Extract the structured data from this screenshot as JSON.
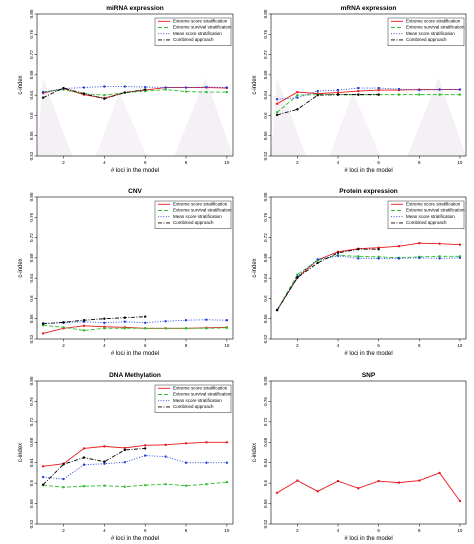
{
  "chart_data": [
    {
      "type": "line",
      "title": "miRNA expression",
      "xlabel": "# loci in the model",
      "ylabel": "c-index",
      "x": [
        1,
        2,
        3,
        4,
        5,
        6,
        7,
        8,
        9,
        10
      ],
      "xticks": [
        2,
        4,
        6,
        8,
        10
      ],
      "ylim": [
        0.52,
        0.8
      ],
      "yticks": [
        0.52,
        0.56,
        0.6,
        0.64,
        0.68,
        0.72,
        0.76,
        0.8
      ],
      "ytick_labels": [
        "0.52",
        "0.56",
        "0.6",
        "0.64",
        "0.68",
        "0.72",
        "0.76",
        "0.80"
      ],
      "legend": "top-right",
      "shaded": true,
      "series": [
        {
          "name": "Extreme score stratification",
          "color": "#e8191c",
          "style": "solid",
          "values": [
            0.644,
            0.653,
            0.641,
            0.634,
            0.645,
            0.65,
            0.655,
            0.655,
            0.655,
            0.654
          ]
        },
        {
          "name": "Extreme survival stratification",
          "color": "#2ebd2e",
          "style": "dashed",
          "values": [
            0.646,
            0.651,
            0.643,
            0.64,
            0.645,
            0.648,
            0.651,
            0.647,
            0.646,
            0.646
          ]
        },
        {
          "name": "Mean score stratification",
          "color": "#1f3fe0",
          "style": "dotted",
          "values": [
            0.646,
            0.653,
            0.655,
            0.657,
            0.657,
            0.656,
            0.655,
            0.655,
            0.656,
            0.655
          ]
        },
        {
          "name": "Combined approach",
          "color": "#000000",
          "style": "dashdot",
          "values": [
            0.635,
            0.654,
            0.643,
            0.633,
            0.645,
            0.651,
            null,
            null,
            null,
            null
          ]
        }
      ]
    },
    {
      "type": "line",
      "title": "mRNA expression",
      "xlabel": "# loci in the model",
      "ylabel": "c-index",
      "x": [
        1,
        2,
        3,
        4,
        5,
        6,
        7,
        8,
        9,
        10
      ],
      "xticks": [
        2,
        4,
        6,
        8,
        10
      ],
      "ylim": [
        0.52,
        0.8
      ],
      "yticks": [
        0.52,
        0.56,
        0.6,
        0.64,
        0.68,
        0.72,
        0.76,
        0.8
      ],
      "ytick_labels": [
        "0.52",
        "0.56",
        "0.6",
        "0.64",
        "0.68",
        "0.72",
        "0.76",
        "0.80"
      ],
      "legend": "top-right",
      "shaded": true,
      "series": [
        {
          "name": "Extreme score stratification",
          "color": "#e8191c",
          "style": "solid",
          "values": [
            0.623,
            0.646,
            0.643,
            0.645,
            0.648,
            0.65,
            0.65,
            0.651,
            0.651,
            0.651
          ]
        },
        {
          "name": "Extreme survival stratification",
          "color": "#2ebd2e",
          "style": "dashed",
          "values": [
            0.606,
            0.64,
            0.641,
            0.641,
            0.641,
            0.641,
            0.641,
            0.641,
            0.641,
            0.641
          ]
        },
        {
          "name": "Mean score stratification",
          "color": "#1f3fe0",
          "style": "dotted",
          "values": [
            0.632,
            0.635,
            0.648,
            0.65,
            0.654,
            0.654,
            0.652,
            0.65,
            0.651,
            0.651
          ]
        },
        {
          "name": "Combined approach",
          "color": "#000000",
          "style": "dashdot",
          "values": [
            0.601,
            0.612,
            0.64,
            0.641,
            0.641,
            0.641,
            null,
            null,
            null,
            null
          ]
        }
      ]
    },
    {
      "type": "line",
      "title": "CNV",
      "xlabel": "# loci in the model",
      "ylabel": "c-index",
      "x": [
        1,
        2,
        3,
        4,
        5,
        6,
        7,
        8,
        9,
        10
      ],
      "xticks": [
        2,
        4,
        6,
        8,
        10
      ],
      "ylim": [
        0.52,
        0.8
      ],
      "yticks": [
        0.52,
        0.56,
        0.6,
        0.64,
        0.68,
        0.72,
        0.76,
        0.8
      ],
      "ytick_labels": [
        "0.52",
        "0.56",
        "0.6",
        "0.64",
        "0.68",
        "0.72",
        "0.76",
        "0.80"
      ],
      "legend": "top-right",
      "shaded": false,
      "series": [
        {
          "name": "Extreme score stratification",
          "color": "#e8191c",
          "style": "solid",
          "values": [
            0.531,
            0.541,
            0.546,
            0.544,
            0.543,
            0.541,
            0.541,
            0.541,
            0.542,
            0.543
          ]
        },
        {
          "name": "Extreme survival stratification",
          "color": "#2ebd2e",
          "style": "dashed",
          "values": [
            0.547,
            0.543,
            0.537,
            0.541,
            0.541,
            0.541,
            0.541,
            0.541,
            0.541,
            0.542
          ]
        },
        {
          "name": "Mean score stratification",
          "color": "#1f3fe0",
          "style": "dotted",
          "values": [
            0.551,
            0.552,
            0.554,
            0.552,
            0.554,
            0.552,
            0.555,
            0.557,
            0.558,
            0.557
          ]
        },
        {
          "name": "Combined approach",
          "color": "#000000",
          "style": "dashdot",
          "values": [
            0.55,
            0.553,
            0.557,
            0.56,
            0.562,
            0.564,
            null,
            null,
            null,
            null
          ]
        }
      ]
    },
    {
      "type": "line",
      "title": "Protein expression",
      "xlabel": "# loci in the model",
      "ylabel": "c-index",
      "x": [
        1,
        2,
        3,
        4,
        5,
        6,
        7,
        8,
        9,
        10
      ],
      "xticks": [
        2,
        4,
        6,
        8,
        10
      ],
      "ylim": [
        0.52,
        0.8
      ],
      "yticks": [
        0.52,
        0.56,
        0.6,
        0.64,
        0.68,
        0.72,
        0.76,
        0.8
      ],
      "ytick_labels": [
        "0.52",
        "0.56",
        "0.6",
        "0.64",
        "0.68",
        "0.72",
        "0.76",
        "0.80"
      ],
      "legend": "top-right",
      "shaded": false,
      "series": [
        {
          "name": "Extreme score stratification",
          "color": "#e8191c",
          "style": "solid",
          "values": [
            0.577,
            0.641,
            0.676,
            0.692,
            0.698,
            0.7,
            0.703,
            0.709,
            0.708,
            0.706
          ]
        },
        {
          "name": "Extreme survival stratification",
          "color": "#2ebd2e",
          "style": "dashed",
          "values": [
            0.577,
            0.647,
            0.675,
            0.685,
            0.683,
            0.682,
            0.68,
            0.682,
            0.683,
            0.683
          ]
        },
        {
          "name": "Mean score stratification",
          "color": "#1f3fe0",
          "style": "dotted",
          "values": [
            0.577,
            0.643,
            0.677,
            0.684,
            0.679,
            0.679,
            0.679,
            0.68,
            0.679,
            0.68
          ]
        },
        {
          "name": "Combined approach",
          "color": "#000000",
          "style": "dashdot",
          "values": [
            0.577,
            0.641,
            0.67,
            0.69,
            0.697,
            0.697,
            null,
            null,
            null,
            null
          ]
        }
      ]
    },
    {
      "type": "line",
      "title": "DNA Methylation",
      "xlabel": "# loci in the model",
      "ylabel": "c-index",
      "x": [
        1,
        2,
        3,
        4,
        5,
        6,
        7,
        8,
        9,
        10
      ],
      "xticks": [
        2,
        4,
        6,
        8,
        10
      ],
      "ylim": [
        0.52,
        0.8
      ],
      "yticks": [
        0.52,
        0.56,
        0.6,
        0.64,
        0.68,
        0.72,
        0.76,
        0.8
      ],
      "ytick_labels": [
        "0.52",
        "0.56",
        "0.6",
        "0.64",
        "0.68",
        "0.72",
        "0.76",
        "0.80"
      ],
      "legend": "top-right",
      "shaded": false,
      "series": [
        {
          "name": "Extreme score stratification",
          "color": "#e8191c",
          "style": "solid",
          "values": [
            0.633,
            0.638,
            0.668,
            0.672,
            0.669,
            0.674,
            0.675,
            0.678,
            0.68,
            0.68
          ]
        },
        {
          "name": "Extreme survival stratification",
          "color": "#2ebd2e",
          "style": "dashed",
          "values": [
            0.596,
            0.592,
            0.594,
            0.595,
            0.593,
            0.596,
            0.598,
            0.595,
            0.598,
            0.602
          ]
        },
        {
          "name": "Mean score stratification",
          "color": "#1f3fe0",
          "style": "dotted",
          "values": [
            0.612,
            0.608,
            0.636,
            0.638,
            0.641,
            0.654,
            0.652,
            0.64,
            0.64,
            0.64
          ]
        },
        {
          "name": "Combined approach",
          "color": "#000000",
          "style": "dashdot",
          "values": [
            0.597,
            0.637,
            0.65,
            0.642,
            0.665,
            0.668,
            null,
            null,
            null,
            null
          ]
        }
      ]
    },
    {
      "type": "line",
      "title": "SNP",
      "xlabel": "# loci in the model",
      "ylabel": "c-index",
      "x": [
        1,
        2,
        3,
        4,
        5,
        6,
        7,
        8,
        9,
        10
      ],
      "xticks": [
        2,
        4,
        6,
        8,
        10
      ],
      "ylim": [
        0.52,
        0.8
      ],
      "yticks": [
        0.52,
        0.56,
        0.6,
        0.64,
        0.68,
        0.72,
        0.76,
        0.8
      ],
      "ytick_labels": [
        "0.52",
        "0.56",
        "0.6",
        "0.64",
        "0.68",
        "0.72",
        "0.76",
        "0.80"
      ],
      "legend": "none",
      "shaded": false,
      "series": [
        {
          "name": "",
          "color": "#e8191c",
          "style": "solid",
          "values": [
            0.581,
            0.605,
            0.584,
            0.604,
            0.59,
            0.604,
            0.601,
            0.605,
            0.62,
            0.565
          ]
        }
      ]
    }
  ]
}
